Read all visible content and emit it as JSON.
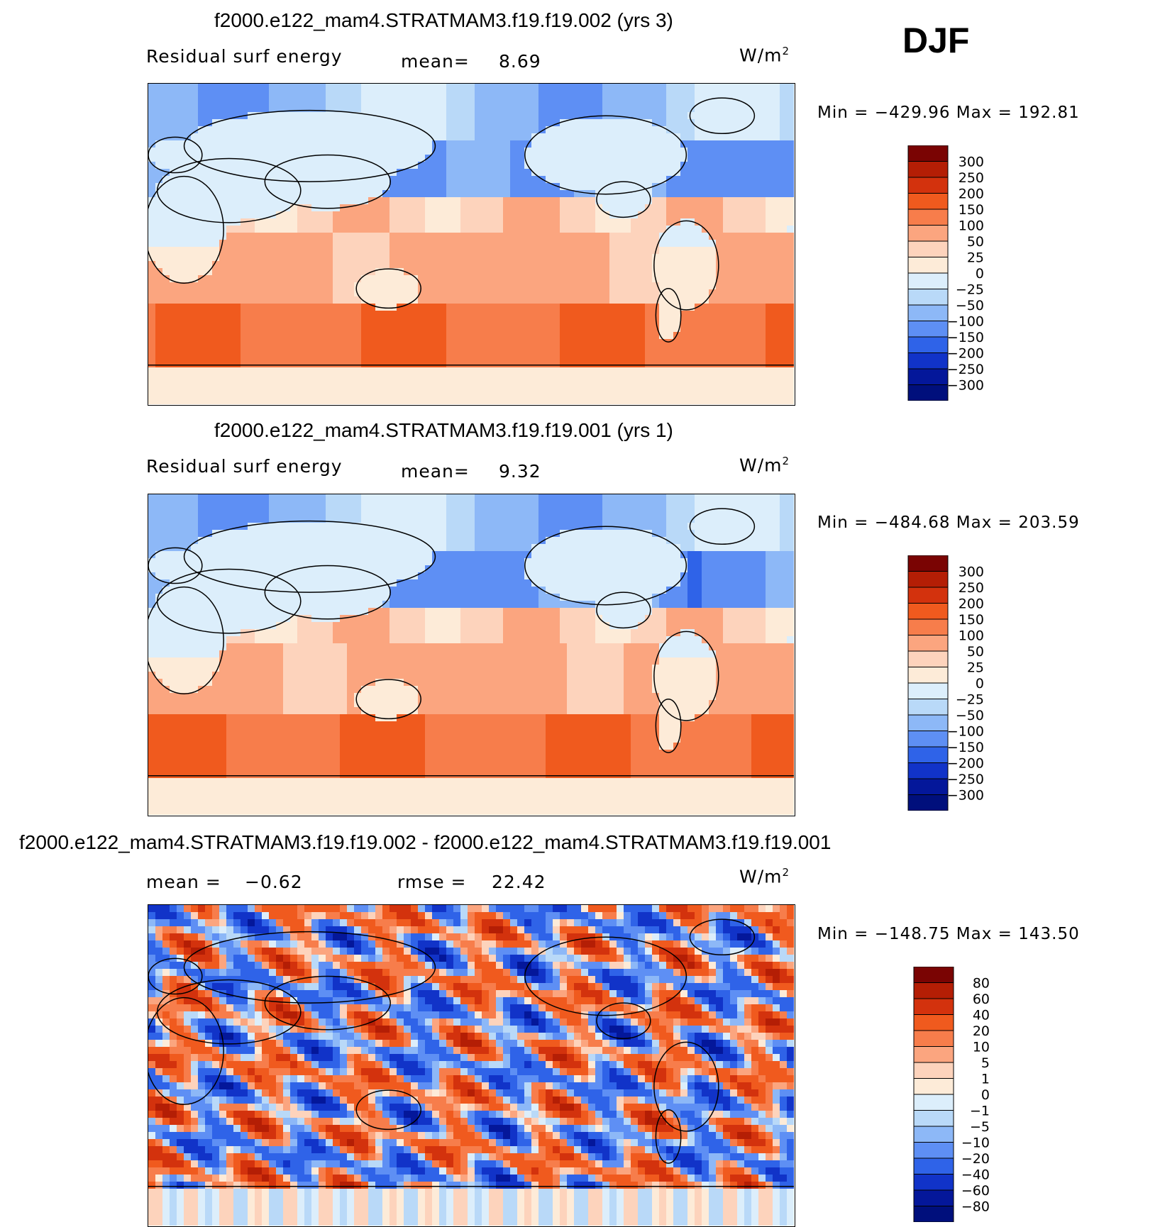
{
  "season": "DJF",
  "panels": [
    {
      "title": "f2000.e122_mam4.STRATMAM3.f19.f19.002 (yrs 3)",
      "variable": "Residual surf energy",
      "stat1_label": "mean=",
      "stat1_value": "8.69",
      "stat2_label": "",
      "stat2_value": "",
      "units_base": "W/m",
      "units_exp": "2",
      "min_label": "Min",
      "min_value": "−429.96",
      "max_label": "Max",
      "max_value": "192.81",
      "colorbar_labels": [
        "300",
        "250",
        "200",
        "150",
        "100",
        "50",
        "25",
        "0",
        "−25",
        "−50",
        "−100",
        "−150",
        "−200",
        "−250",
        "−300"
      ]
    },
    {
      "title": "f2000.e122_mam4.STRATMAM3.f19.f19.001 (yrs 1)",
      "variable": "Residual surf energy",
      "stat1_label": "mean=",
      "stat1_value": "9.32",
      "stat2_label": "",
      "stat2_value": "",
      "units_base": "W/m",
      "units_exp": "2",
      "min_label": "Min",
      "min_value": "−484.68",
      "max_label": "Max",
      "max_value": "203.59",
      "colorbar_labels": [
        "300",
        "250",
        "200",
        "150",
        "100",
        "50",
        "25",
        "0",
        "−25",
        "−50",
        "−100",
        "−150",
        "−200",
        "−250",
        "−300"
      ]
    },
    {
      "title": "f2000.e122_mam4.STRATMAM3.f19.f19.002 - f2000.e122_mam4.STRATMAM3.f19.f19.001",
      "variable": "",
      "stat1_label": "mean =",
      "stat1_value": "−0.62",
      "stat2_label": "rmse =",
      "stat2_value": "22.42",
      "units_base": "W/m",
      "units_exp": "2",
      "min_label": "Min",
      "min_value": "−148.75",
      "max_label": "Max",
      "max_value": "143.50",
      "colorbar_labels": [
        "80",
        "60",
        "40",
        "20",
        "10",
        "5",
        "1",
        "0",
        "−1",
        "−5",
        "−10",
        "−20",
        "−40",
        "−60",
        "−80"
      ]
    }
  ],
  "chart_data": {
    "type": "heatmap",
    "title": "DJF",
    "series": [
      {
        "name": "f2000.e122_mam4.STRATMAM3.f19.f19.002 (yrs 3)",
        "mean": 8.69,
        "min": -429.96,
        "max": 192.81,
        "levels": [
          300,
          250,
          200,
          150,
          100,
          50,
          25,
          0,
          -25,
          -50,
          -100,
          -150,
          -200,
          -250,
          -300
        ]
      },
      {
        "name": "f2000.e122_mam4.STRATMAM3.f19.f19.001 (yrs 1)",
        "mean": 9.32,
        "min": -484.68,
        "max": 203.59,
        "levels": [
          300,
          250,
          200,
          150,
          100,
          50,
          25,
          0,
          -25,
          -50,
          -100,
          -150,
          -200,
          -250,
          -300
        ]
      },
      {
        "name": "f2000.e122_mam4.STRATMAM3.f19.f19.002 - f2000.e122_mam4.STRATMAM3.f19.f19.001",
        "mean": -0.62,
        "rmse": 22.42,
        "min": -148.75,
        "max": 143.5,
        "levels": [
          80,
          60,
          40,
          20,
          10,
          5,
          1,
          0,
          -1,
          -5,
          -10,
          -20,
          -40,
          -60,
          -80
        ]
      }
    ],
    "units": "W/m2"
  },
  "colors": {
    "palette": [
      "#7a0403",
      "#b41e05",
      "#d3320d",
      "#f05a1e",
      "#f77d4b",
      "#fba57f",
      "#fdd3bc",
      "#fdebd8",
      "#dceefb",
      "#b9d9f8",
      "#8db8f7",
      "#5e8ff4",
      "#2f63e8",
      "#1133c8",
      "#04179a",
      "#000f7c"
    ]
  }
}
